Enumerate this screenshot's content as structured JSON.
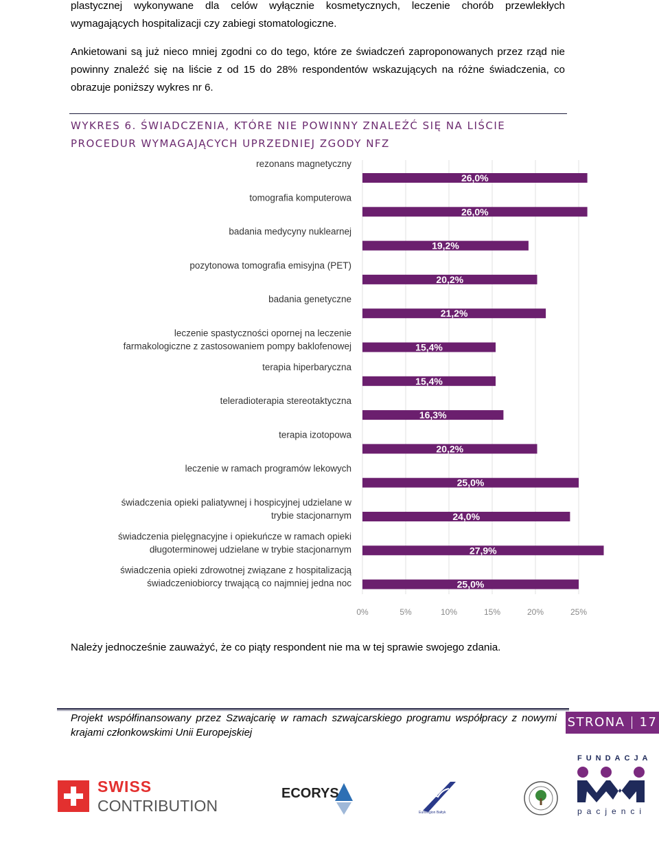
{
  "paragraphs": {
    "p1": "plastycznej wykonywane dla celów wyłącznie kosmetycznych, leczenie chorób przewlekłych wymagających hospitalizacji czy zabiegi stomatologiczne.",
    "p2": "Ankietowani są już nieco mniej zgodni co do tego, które ze świadczeń zaproponowanych przez rząd nie powinny znaleźć się na liście z od 15 do 28% respondentów wskazujących na różne świadczenia, co obrazuje poniższy wykres nr 6.",
    "p3": "Należy jednocześnie zauważyć, że co piąty respondent nie ma w tej sprawie swojego zdania."
  },
  "chart_title": "WYKRES 6. ŚWIADCZENIA, KTÓRE NIE POWINNY ZNALEŹĆ SIĘ NA LIŚCIE PROCEDUR WYMAGAJĄCYCH UPRZEDNIEJ ZGODY NFZ",
  "chart_data": {
    "type": "bar",
    "orientation": "horizontal",
    "categories": [
      [
        "rezonans magnetyczny"
      ],
      [
        "tomografia komputerowa"
      ],
      [
        "badania medycyny nuklearnej"
      ],
      [
        "pozytonowa tomografia emisyjna (PET)"
      ],
      [
        "badania genetyczne"
      ],
      [
        "leczenie spastyczności opornej na leczenie",
        "farmakologiczne z zastosowaniem pompy baklofenowej"
      ],
      [
        "terapia hiperbaryczna"
      ],
      [
        "teleradioterapia stereotaktyczna"
      ],
      [
        "terapia izotopowa"
      ],
      [
        "leczenie w ramach programów lekowych"
      ],
      [
        "świadczenia opieki paliatywnej i hospicyjnej udzielane w",
        "trybie stacjonarnym"
      ],
      [
        "świadczenia pielęgnacyjne i opiekuńcze w ramach opieki",
        "długoterminowej udzielane w trybie stacjonarnym"
      ],
      [
        "świadczenia opieki zdrowotnej związane z hospitalizacją",
        "świadczeniobiorcy trwającą co najmniej jedna noc"
      ]
    ],
    "values": [
      26.0,
      26.0,
      19.2,
      20.2,
      21.2,
      15.4,
      15.4,
      16.3,
      20.2,
      25.0,
      24.0,
      27.9,
      25.0
    ],
    "data_labels": [
      "26,0%",
      "26,0%",
      "19,2%",
      "20,2%",
      "21,2%",
      "15,4%",
      "15,4%",
      "16,3%",
      "20,2%",
      "25,0%",
      "24,0%",
      "27,9%",
      "25,0%"
    ],
    "x_ticks": [
      "0%",
      "5%",
      "10%",
      "15%",
      "20%",
      "25%"
    ],
    "xlim": [
      0,
      25
    ],
    "bar_color": "#6b1f6e",
    "grid": true
  },
  "footer": {
    "text": "Projekt współfinansowany przez Szwajcarię w ramach szwajcarskiego programu współpracy z nowymi krajami członkowskimi Unii Europejskiej",
    "page_word": "STRONA",
    "page_number": "17",
    "accent_color": "#7b2a7f"
  },
  "logos": {
    "swiss_line1": "SWISS",
    "swiss_line2": "CONTRIBUTION",
    "ecorys": "ECORYS",
    "euroregion": "Euroregion Bałtyk",
    "fundacja_top": "FUNDACJA",
    "fundacja_bottom": "pacjenci"
  }
}
